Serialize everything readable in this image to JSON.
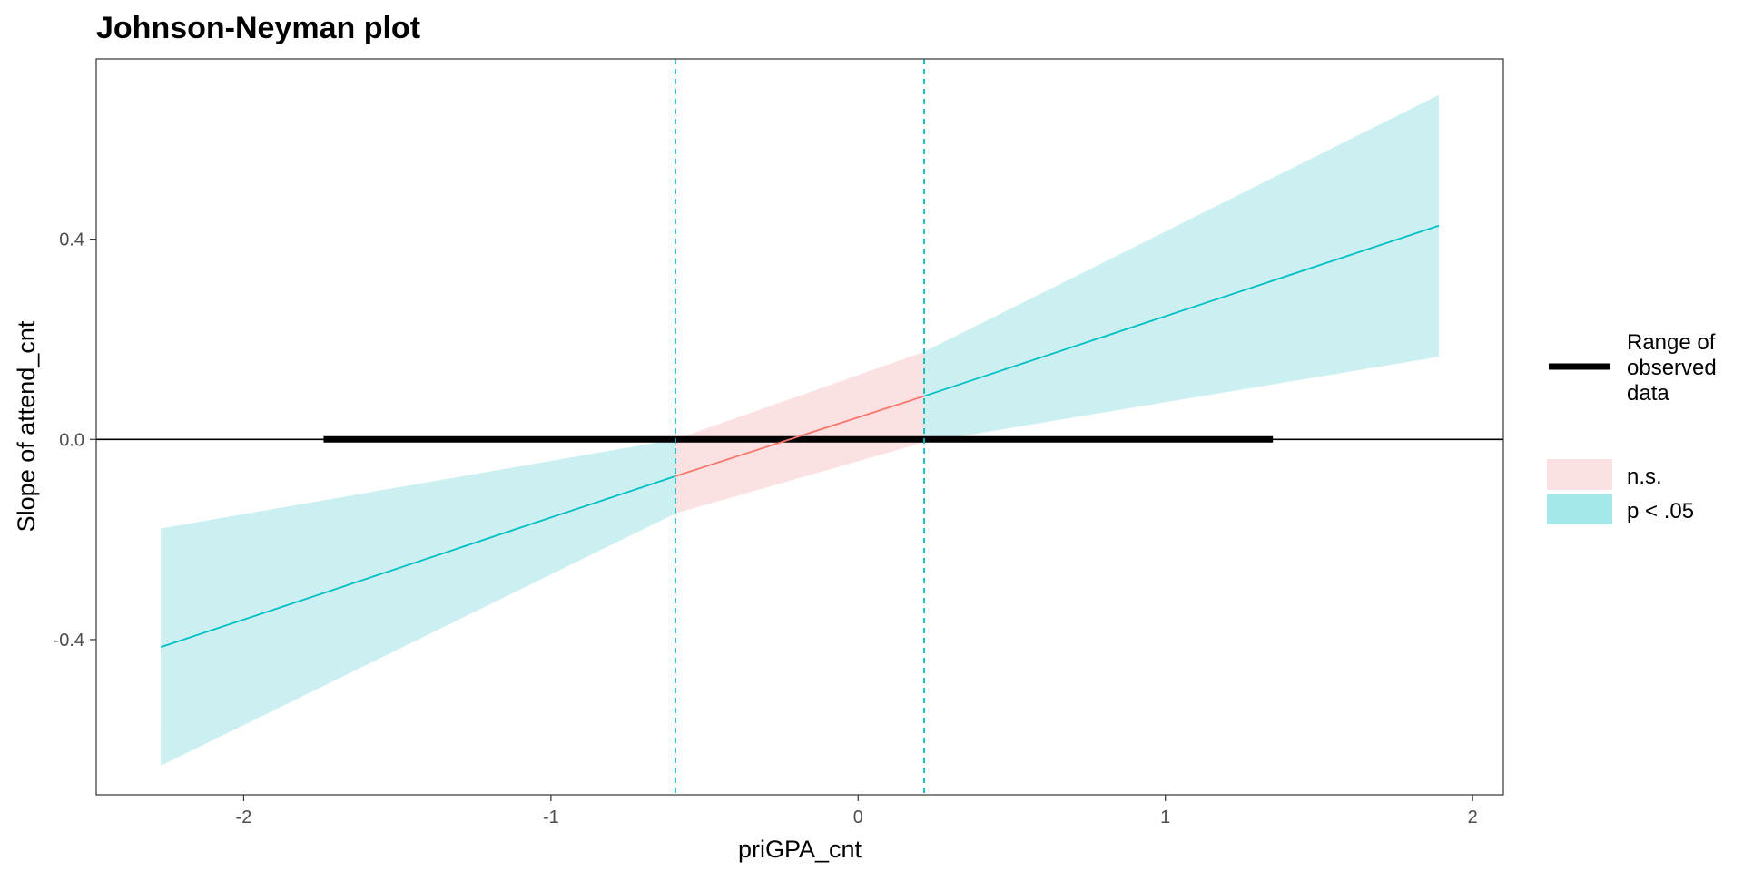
{
  "chart_data": {
    "type": "line",
    "title": "Johnson-Neyman plot",
    "xlabel": "priGPA_cnt",
    "ylabel": "Slope of attend_cnt",
    "xlim": [
      -2.48,
      2.1
    ],
    "ylim": [
      -0.71,
      0.76
    ],
    "x_ticks": [
      -2,
      -1,
      0,
      1,
      2
    ],
    "x_tick_labels": [
      "-2",
      "-1",
      "0",
      "1",
      "2"
    ],
    "y_ticks": [
      -0.4,
      0.0,
      0.4
    ],
    "y_tick_labels": [
      "-0.4",
      "0.0",
      "0.4"
    ],
    "grid": false,
    "colors": {
      "ns": "#F8766D",
      "ns_fill": "#FBE1E1",
      "sig": "#00BFC4",
      "sig_fill": "#CCF0F2",
      "range": "#000000"
    },
    "series": [
      {
        "name": "n.s.",
        "x": [
          -0.595,
          0.215
        ],
        "slope": [
          -0.0735,
          0.0865
        ],
        "lower": [
          -0.148,
          -0.006
        ],
        "upper": [
          0.0,
          0.175
        ]
      },
      {
        "name": "p < .05",
        "x": [
          -2.27,
          -0.595
        ],
        "slope": [
          -0.415,
          -0.0735
        ],
        "lower": [
          -0.652,
          -0.148
        ],
        "upper": [
          -0.178,
          0.0
        ]
      },
      {
        "name": "p < .05",
        "x": [
          0.215,
          1.89
        ],
        "slope": [
          0.0865,
          0.427
        ],
        "lower": [
          -0.006,
          0.165
        ],
        "upper": [
          0.175,
          0.688
        ]
      }
    ],
    "jn_bounds": [
      -0.595,
      0.215
    ],
    "observed_range": {
      "name": "Range of observed data",
      "x": [
        -1.74,
        1.35
      ],
      "y": 0.0
    },
    "zero_line": 0.0,
    "legend": {
      "placement": "right",
      "range_label_lines": [
        "Range of",
        "observed",
        "data"
      ],
      "ns_label": "n.s.",
      "sig_label": "p < .05"
    }
  }
}
